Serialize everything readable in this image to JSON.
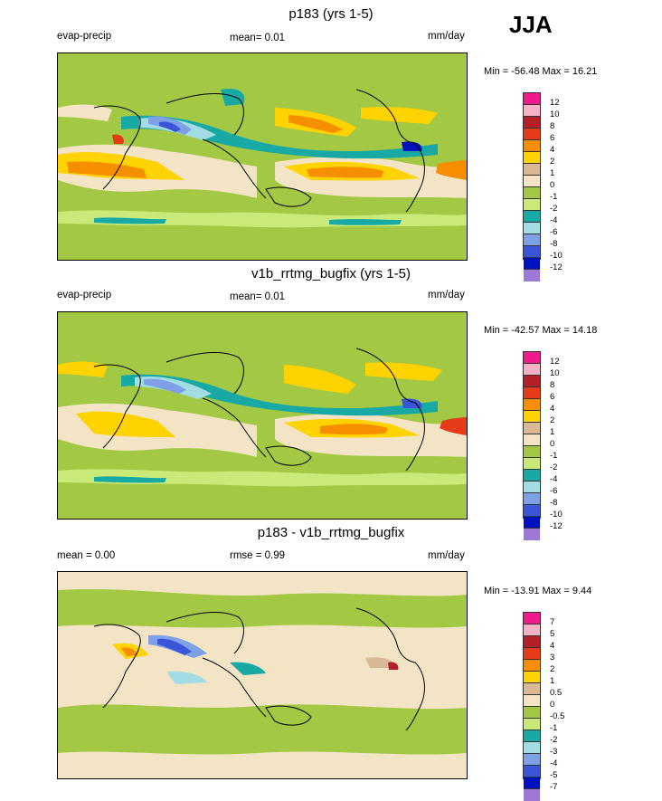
{
  "season": "JJA",
  "panels": [
    {
      "title": "p183 (yrs 1-5)",
      "left_label": "evap-precip",
      "center_label": "mean=   0.01",
      "units": "mm/day",
      "minmax": "Min = -56.48 Max =  16.21",
      "legend_labels": [
        "12",
        "10",
        "8",
        "6",
        "4",
        "2",
        "1",
        "0",
        "-1",
        "-2",
        "-4",
        "-6",
        "-8",
        "-10",
        "-12"
      ]
    },
    {
      "title": "v1b_rrtmg_bugfix (yrs 1-5)",
      "left_label": "evap-precip",
      "center_label": "mean=   0.01",
      "units": "mm/day",
      "minmax": "Min = -42.57 Max =  14.18",
      "legend_labels": [
        "12",
        "10",
        "8",
        "6",
        "4",
        "2",
        "1",
        "0",
        "-1",
        "-2",
        "-4",
        "-6",
        "-8",
        "-10",
        "-12"
      ]
    },
    {
      "title": "p183 - v1b_rrtmg_bugfix",
      "left_label": "mean =   0.00",
      "center_label": "rmse =   0.99",
      "units": "mm/day",
      "minmax": "Min = -13.91 Max =   9.44",
      "legend_labels": [
        "7",
        "5",
        "4",
        "3",
        "2",
        "1",
        "0.5",
        "0",
        "-0.5",
        "-1",
        "-2",
        "-3",
        "-4",
        "-5",
        "-7"
      ]
    }
  ],
  "colors": {
    "scale": [
      "#ef1a8c",
      "#f7b3c6",
      "#b51f2a",
      "#e63b1a",
      "#f58f00",
      "#ffd300",
      "#d9b995",
      "#f2e4c4",
      "#a3c944",
      "#c9ea79",
      "#19a9a5",
      "#a3dce3",
      "#7f9fe6",
      "#3a55d8",
      "#0011bf",
      "#9c79d6"
    ],
    "land_outline": "#000000"
  }
}
